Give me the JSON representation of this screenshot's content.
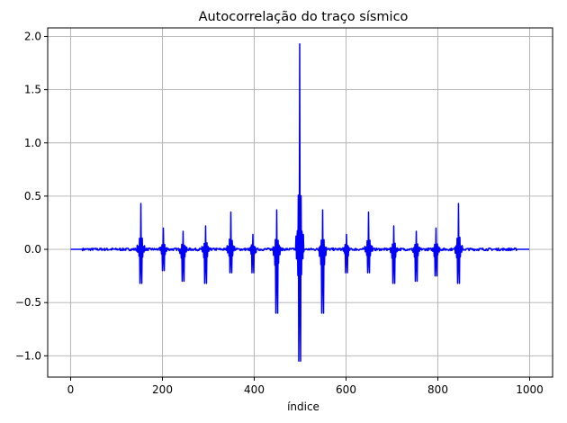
{
  "chart_data": {
    "type": "line",
    "title": "Autocorrelação do traço sísmico",
    "xlabel": "índice",
    "ylabel": "",
    "xlim": [
      -50,
      1050
    ],
    "ylim": [
      -1.2,
      2.08
    ],
    "x_ticks": [
      0,
      200,
      400,
      600,
      800,
      1000
    ],
    "x_tick_labels": [
      "0",
      "200",
      "400",
      "600",
      "800",
      "1000"
    ],
    "y_ticks": [
      -1.0,
      -0.5,
      0.0,
      0.5,
      1.0,
      1.5,
      2.0
    ],
    "y_tick_labels": [
      "−1.0",
      "−0.5",
      "0.0",
      "0.5",
      "1.0",
      "1.5",
      "2.0"
    ],
    "grid": true,
    "legend": "none",
    "series": [
      {
        "color": "#0000ff",
        "x_range": [
          0,
          999
        ],
        "baseline": 0.0,
        "noise_amplitude": 0.012,
        "events": [
          {
            "x": 153,
            "max": 0.43,
            "min": -0.32
          },
          {
            "x": 202,
            "max": 0.2,
            "min": -0.2
          },
          {
            "x": 245,
            "max": 0.17,
            "min": -0.3
          },
          {
            "x": 294,
            "max": 0.22,
            "min": -0.32
          },
          {
            "x": 349,
            "max": 0.35,
            "min": -0.22
          },
          {
            "x": 397,
            "max": 0.14,
            "min": -0.22
          },
          {
            "x": 449,
            "max": 0.37,
            "min": -0.6
          },
          {
            "x": 499,
            "max": 1.93,
            "min": -1.05
          },
          {
            "x": 549,
            "max": 0.37,
            "min": -0.6
          },
          {
            "x": 601,
            "max": 0.14,
            "min": -0.22
          },
          {
            "x": 649,
            "max": 0.35,
            "min": -0.22
          },
          {
            "x": 704,
            "max": 0.22,
            "min": -0.32
          },
          {
            "x": 753,
            "max": 0.17,
            "min": -0.3
          },
          {
            "x": 796,
            "max": 0.2,
            "min": -0.25
          },
          {
            "x": 845,
            "max": 0.43,
            "min": -0.32
          }
        ]
      }
    ]
  }
}
